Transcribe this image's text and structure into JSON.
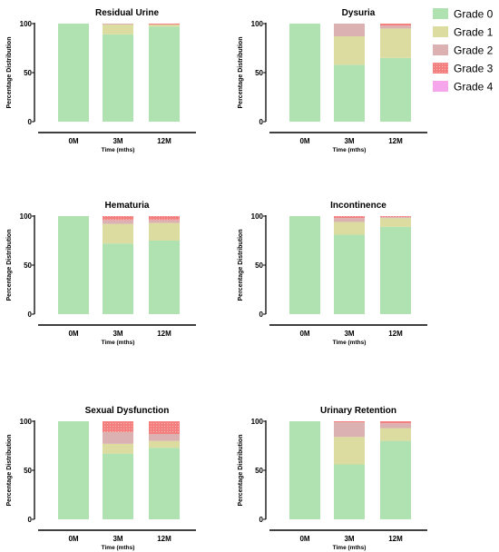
{
  "chart_data": {
    "type": "bar",
    "stacked": true,
    "grades": [
      "Grade 0",
      "Grade 1",
      "Grade 2",
      "Grade 3",
      "Grade 4"
    ],
    "colors": [
      "#b0e1b0",
      "#dcdca0",
      "#dcb1b1",
      "#f47f7f",
      "#f6a6ea"
    ],
    "legend": {
      "position": "top-right",
      "entries": [
        "Grade 0",
        "Grade 1",
        "Grade 2",
        "Grade 3",
        "Grade 4"
      ]
    },
    "categories": [
      "0M",
      "3M",
      "12M"
    ],
    "ylim": [
      0,
      100
    ],
    "yticks": [
      0,
      50,
      100
    ],
    "grid": false,
    "panels": [
      {
        "title": "Residual Urine",
        "ylabel": "Percentage Distribution",
        "xlabel": "Time (mths)",
        "values": [
          [
            100,
            0,
            0,
            0,
            0
          ],
          [
            89,
            10,
            1,
            0,
            0
          ],
          [
            97,
            2,
            0,
            1,
            0
          ]
        ]
      },
      {
        "title": "Dysuria",
        "ylabel": "Percentage Distribution",
        "xlabel": "Time (mths)",
        "values": [
          [
            100,
            0,
            0,
            0,
            0
          ],
          [
            58,
            29,
            13,
            0,
            0
          ],
          [
            65,
            30,
            3,
            2,
            0
          ]
        ]
      },
      {
        "title": "Hematuria",
        "ylabel": "Percentage Distribution",
        "xlabel": "Time (mths)",
        "values": [
          [
            100,
            0,
            0,
            0,
            0
          ],
          [
            72,
            20,
            4,
            4,
            0
          ],
          [
            75,
            18,
            3,
            4,
            0
          ]
        ]
      },
      {
        "title": "Incontinence",
        "ylabel": "Percentage Distribution",
        "xlabel": "Time (mths)",
        "values": [
          [
            100,
            0,
            0,
            0,
            0
          ],
          [
            81,
            13,
            4,
            2,
            0
          ],
          [
            89,
            9,
            1,
            1,
            0
          ]
        ]
      },
      {
        "title": "Sexual Dysfunction",
        "ylabel": "Percentage Distribution",
        "xlabel": "Time (mths)",
        "values": [
          [
            100,
            0,
            0,
            0,
            0
          ],
          [
            67,
            10,
            12,
            11,
            0
          ],
          [
            73,
            7,
            7,
            13,
            0
          ]
        ]
      },
      {
        "title": "Urinary Retention",
        "ylabel": "Percentage Distribution",
        "xlabel": "Time (mths)",
        "values": [
          [
            100,
            0,
            0,
            0,
            0
          ],
          [
            56,
            28,
            15,
            1,
            0
          ],
          [
            80,
            13,
            5,
            2,
            0
          ]
        ]
      }
    ]
  }
}
